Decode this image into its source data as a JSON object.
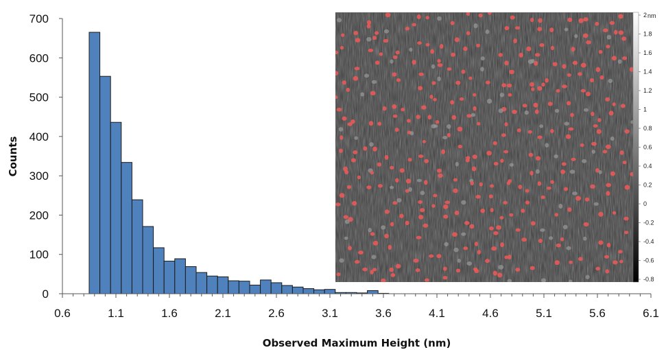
{
  "chart_data": {
    "type": "bar",
    "subtype": "histogram",
    "xlabel": "Observed Maximum Height (nm)",
    "ylabel": "Counts",
    "xlim": [
      0.6,
      6.1
    ],
    "ylim": [
      0,
      700
    ],
    "x_ticks": [
      "0.6",
      "1.1",
      "1.6",
      "2.1",
      "2.6",
      "3.1",
      "3.6",
      "4.1",
      "4.6",
      "5.1",
      "5.6",
      "6.1"
    ],
    "y_ticks": [
      "0",
      "100",
      "200",
      "300",
      "400",
      "500",
      "600",
      "700"
    ],
    "bin_width": 0.1,
    "bin_starts": [
      0.85,
      0.95,
      1.05,
      1.15,
      1.25,
      1.35,
      1.45,
      1.55,
      1.65,
      1.75,
      1.85,
      1.95,
      2.05,
      2.15,
      2.25,
      2.35,
      2.45,
      2.55,
      2.65,
      2.75,
      2.85,
      2.95,
      3.05,
      3.15,
      3.25,
      3.35,
      3.45,
      3.55,
      3.65
    ],
    "values": [
      665,
      553,
      436,
      334,
      239,
      171,
      117,
      83,
      89,
      69,
      54,
      45,
      43,
      33,
      32,
      22,
      35,
      28,
      21,
      17,
      13,
      10,
      11,
      3,
      3,
      2,
      8,
      1,
      0
    ],
    "bar_color": "#4F81BD",
    "bar_edge_color": "#1a1a1a",
    "grid": false,
    "inset": {
      "description": "AFM height image with detected particles marked in red",
      "colorbar_unit": "nm",
      "colorbar_ticks": [
        "2",
        "1.8",
        "1.6",
        "1.4",
        "1.2",
        "1",
        "0.8",
        "0.6",
        "0.4",
        "0.2",
        "0",
        "-0.2",
        "-0.4",
        "-0.6",
        "-0.8"
      ],
      "particle_color": "#e85a5a"
    }
  }
}
